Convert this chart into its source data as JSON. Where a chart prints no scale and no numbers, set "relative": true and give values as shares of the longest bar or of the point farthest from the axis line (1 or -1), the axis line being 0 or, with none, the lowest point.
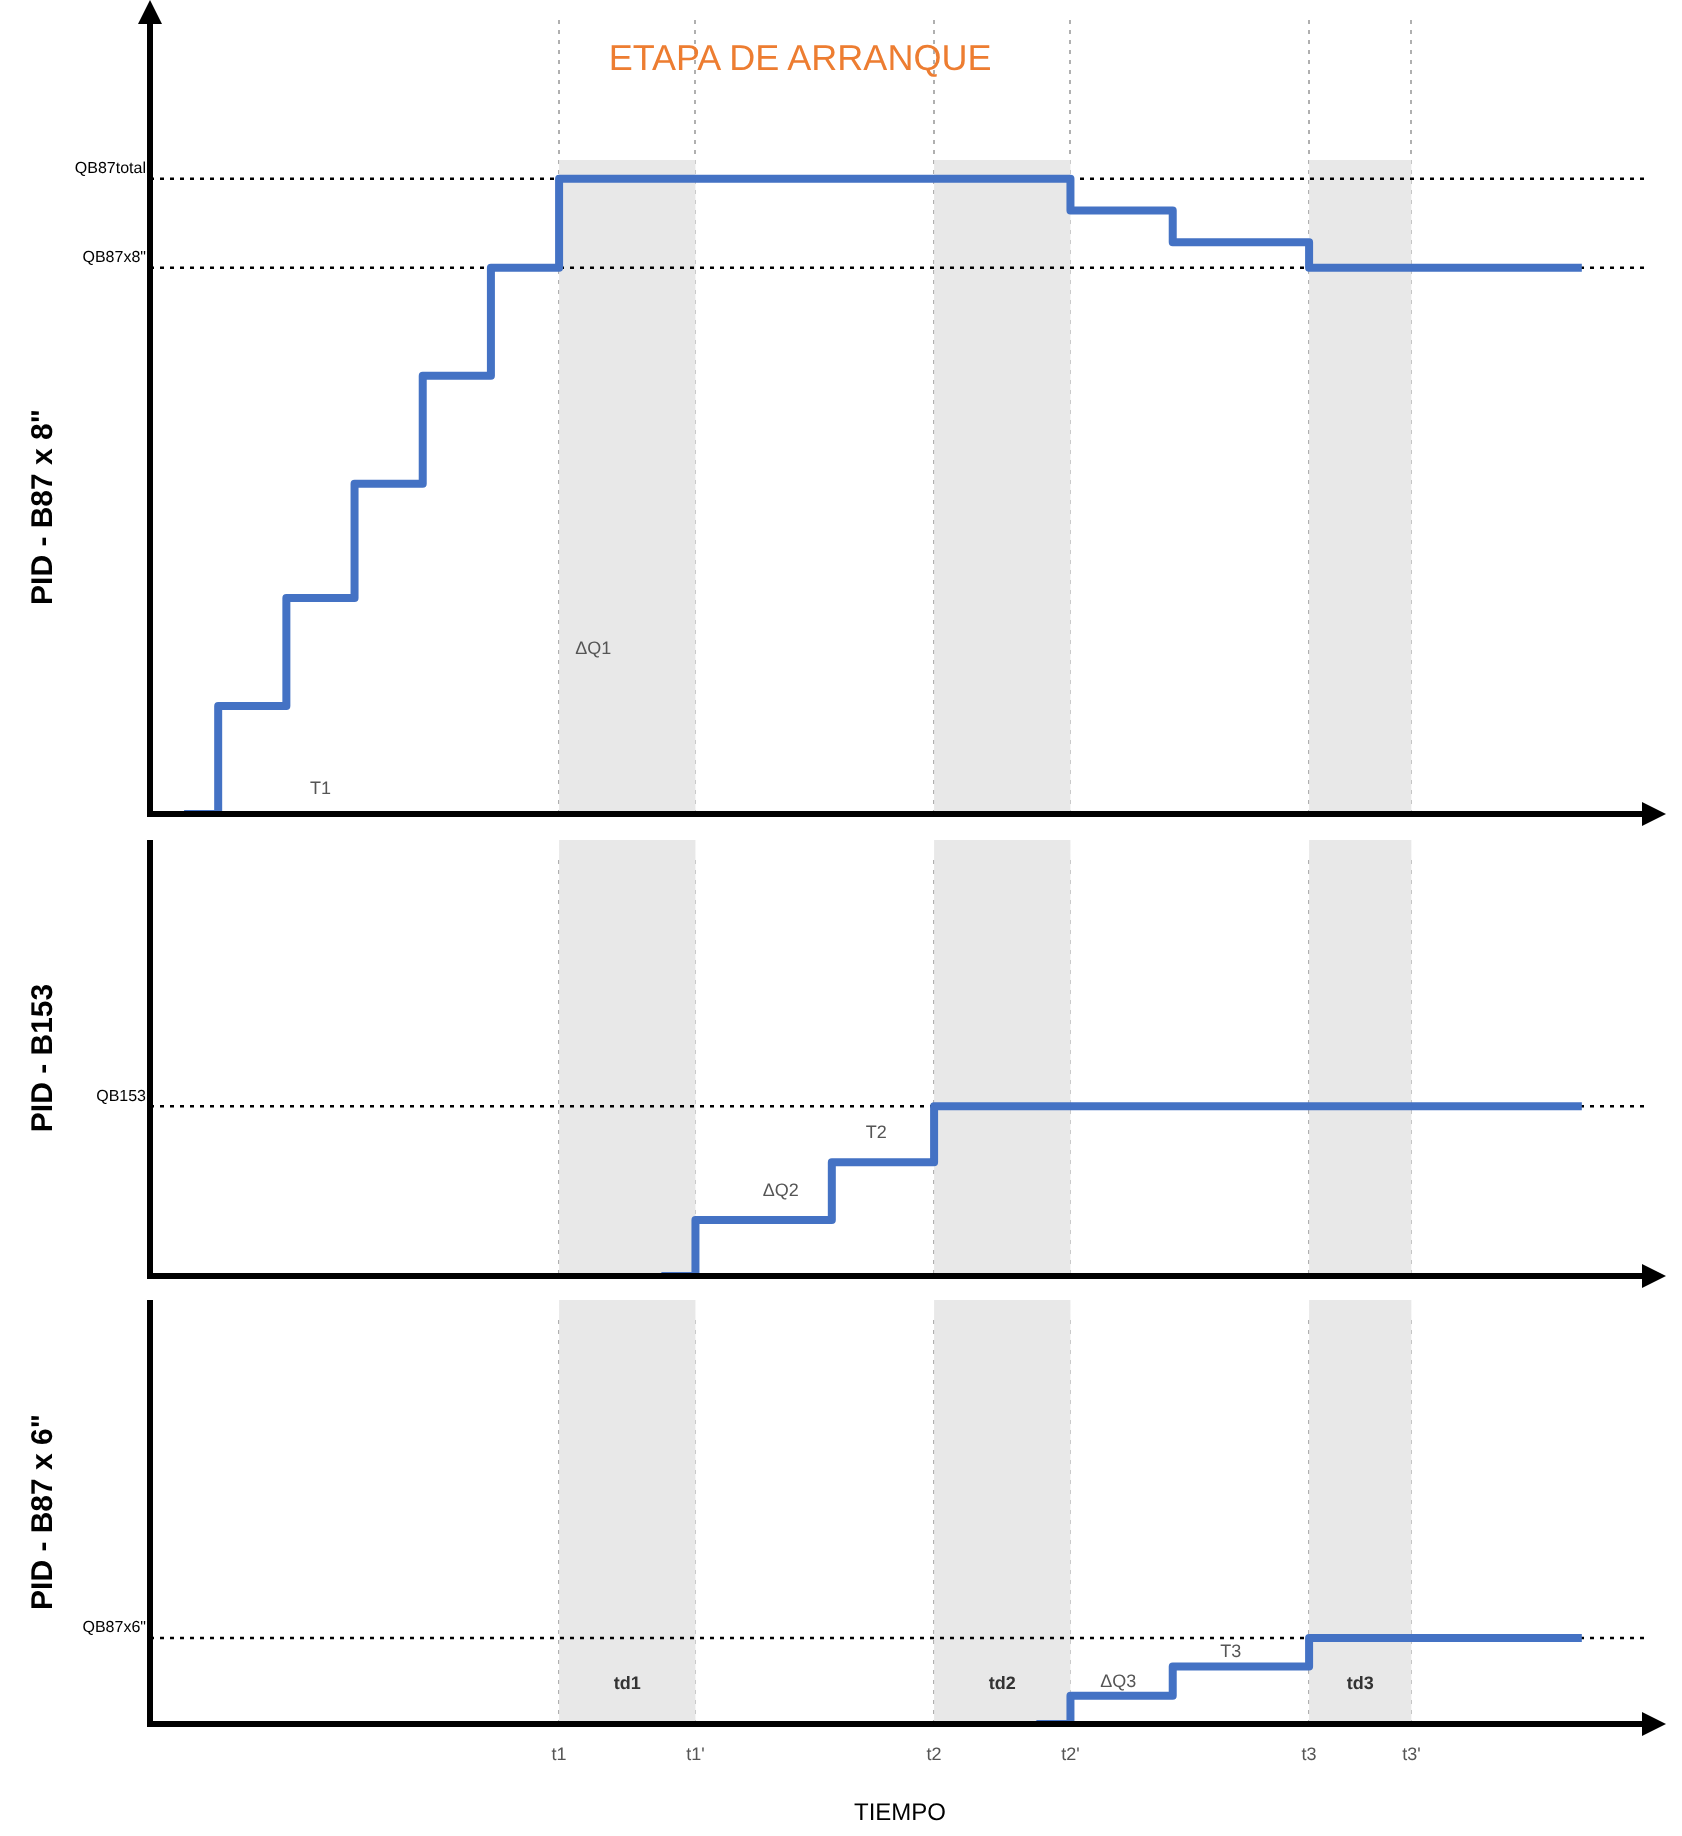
{
  "chart_data": [
    {
      "type": "step",
      "title": "ETAPA DE ARRANQUE",
      "ylabel": "PID - B87 x 8\"",
      "relative": true,
      "grid": "x",
      "marker": "none",
      "line_style": "solid",
      "tick_labels": false,
      "categories": [
        null,
        null,
        null,
        null,
        null,
        null,
        null,
        null,
        null,
        null,
        null,
        null,
        "t1",
        null,
        null,
        null,
        "t1'",
        null,
        null,
        null,
        null,
        null,
        null,
        "t2",
        null,
        null,
        null,
        "t2'",
        null,
        null,
        null,
        null,
        null,
        null,
        "t3",
        null,
        null,
        "t3'",
        null,
        null,
        null,
        null,
        null,
        null,
        null
      ],
      "series": [
        {
          "color": "#4472c4",
          "values": [
            null,
            0,
            0.17,
            0.17,
            0.34,
            0.34,
            0.52,
            0.52,
            0.69,
            0.69,
            0.86,
            0.86,
            1,
            1,
            1,
            1,
            1,
            1,
            1,
            1,
            1,
            1,
            1,
            1,
            1,
            1,
            1,
            0.95,
            0.95,
            0.95,
            0.9,
            0.9,
            0.9,
            0.9,
            0.86,
            0.86,
            0.86,
            0.86,
            0.86,
            0.86,
            0.86,
            0.86,
            0.86,
            null,
            null
          ]
        }
      ],
      "ref_lines": [
        {
          "axis": "y",
          "value": 1,
          "label": "QB87total",
          "color": "#000000",
          "line_style": "dotted"
        },
        {
          "axis": "y",
          "value": 0.86,
          "label": "QB87x8\"",
          "color": "#000000",
          "line_style": "dotted"
        }
      ],
      "bands": [
        {
          "axis": "x",
          "from": "t1",
          "to": "t1'",
          "color": "#e8e8e8"
        },
        {
          "axis": "x",
          "from": "t2",
          "to": "t2'",
          "color": "#e8e8e8"
        },
        {
          "axis": "x",
          "from": "t3",
          "to": "t3'",
          "color": "#e8e8e8"
        }
      ],
      "annotations": [
        "ΔQ1",
        "T1"
      ]
    },
    {
      "type": "step",
      "ylabel": "PID - B153",
      "relative": true,
      "grid": "x",
      "marker": "none",
      "line_style": "solid",
      "tick_labels": false,
      "categories": [
        null,
        null,
        null,
        null,
        null,
        null,
        null,
        null,
        null,
        null,
        null,
        null,
        "t1",
        null,
        null,
        null,
        "t1'",
        null,
        null,
        null,
        null,
        null,
        null,
        "t2",
        null,
        null,
        null,
        "t2'",
        null,
        null,
        null,
        null,
        null,
        null,
        "t3",
        null,
        null,
        "t3'",
        null,
        null,
        null,
        null,
        null,
        null,
        null
      ],
      "series": [
        {
          "color": "#4472c4",
          "values": [
            null,
            null,
            null,
            null,
            null,
            null,
            null,
            null,
            null,
            null,
            null,
            null,
            null,
            null,
            null,
            0,
            0.33,
            0.33,
            0.33,
            0.33,
            0.67,
            0.67,
            0.67,
            1,
            1,
            1,
            1,
            1,
            1,
            1,
            1,
            1,
            1,
            1,
            1,
            1,
            1,
            1,
            1,
            1,
            1,
            1,
            1,
            null,
            null
          ]
        }
      ],
      "ref_lines": [
        {
          "axis": "y",
          "value": 1,
          "label": "QB153",
          "color": "#000000",
          "line_style": "dotted"
        }
      ],
      "bands": [
        {
          "axis": "x",
          "from": "t1",
          "to": "t1'",
          "color": "#e8e8e8"
        },
        {
          "axis": "x",
          "from": "t2",
          "to": "t2'",
          "color": "#e8e8e8"
        },
        {
          "axis": "x",
          "from": "t3",
          "to": "t3'",
          "color": "#e8e8e8"
        }
      ],
      "annotations": [
        "ΔQ2",
        "T2"
      ]
    },
    {
      "type": "step",
      "ylabel": "PID - B87 x 6\"",
      "xlabel": "TIEMPO",
      "relative": true,
      "grid": "x",
      "marker": "none",
      "line_style": "solid",
      "tick_labels": "x",
      "categories": [
        null,
        null,
        null,
        null,
        null,
        null,
        null,
        null,
        null,
        null,
        null,
        null,
        "t1",
        null,
        null,
        null,
        "t1'",
        null,
        null,
        null,
        null,
        null,
        null,
        "t2",
        null,
        null,
        null,
        "t2'",
        null,
        null,
        null,
        null,
        null,
        null,
        "t3",
        null,
        null,
        "t3'",
        null,
        null,
        null,
        null,
        null,
        null,
        null
      ],
      "series": [
        {
          "color": "#4472c4",
          "values": [
            null,
            null,
            null,
            null,
            null,
            null,
            null,
            null,
            null,
            null,
            null,
            null,
            null,
            null,
            null,
            null,
            null,
            null,
            null,
            null,
            null,
            null,
            null,
            null,
            null,
            null,
            0,
            0.33,
            0.33,
            0.33,
            0.67,
            0.67,
            0.67,
            0.67,
            1,
            1,
            1,
            1,
            1,
            1,
            1,
            1,
            1,
            null,
            null
          ]
        }
      ],
      "ref_lines": [
        {
          "axis": "y",
          "value": 1,
          "label": "QB87x6\"",
          "color": "#000000",
          "line_style": "dotted"
        }
      ],
      "bands": [
        {
          "axis": "x",
          "from": "t1",
          "to": "t1'",
          "color": "#e8e8e8",
          "label": "td1"
        },
        {
          "axis": "x",
          "from": "t2",
          "to": "t2'",
          "color": "#e8e8e8",
          "label": "td2"
        },
        {
          "axis": "x",
          "from": "t3",
          "to": "t3'",
          "color": "#e8e8e8",
          "label": "td3"
        }
      ],
      "annotations": [
        "ΔQ3",
        "T3"
      ]
    }
  ]
}
